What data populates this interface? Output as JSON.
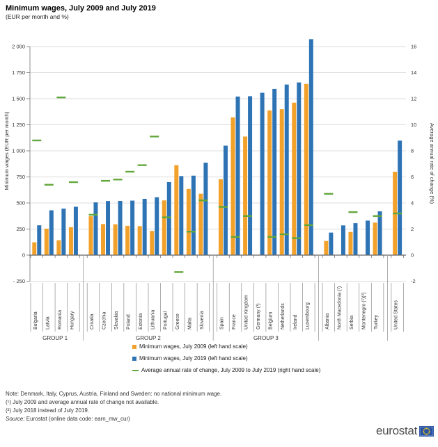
{
  "chart_data": {
    "type": "bar",
    "title": "Minimum wages, July 2009 and July 2019",
    "subtitle": "(EUR per month and %)",
    "y_left": {
      "label": "Minimum wages (EUR per month)",
      "min": -250,
      "max": 2000,
      "tick_step": 250,
      "ticks": [
        "2 000",
        "1 750",
        "1 500",
        "1 250",
        "1 000",
        "750",
        "500",
        "250",
        "0",
        "- 250"
      ]
    },
    "y_right": {
      "label": "Average annual rate of change (%)",
      "min": -2,
      "max": 16,
      "tick_step": 2,
      "ticks": [
        "16",
        "14",
        "12",
        "10",
        "8",
        "6",
        "4",
        "2",
        "0",
        "-2"
      ]
    },
    "grid": true,
    "legend_position": "bottom",
    "series": [
      {
        "key": "wage_2009",
        "name": "Minimum wages, July 2009 (left hand scale)",
        "color": "#F2A22B",
        "axis": "left"
      },
      {
        "key": "wage_2019",
        "name": "Minimum wages, July 2019 (left hand scale)",
        "color": "#2E74B5",
        "axis": "left"
      },
      {
        "key": "rate",
        "name": "Average annual rate of change, July 2009 to July 2019 (right hand scale)",
        "color": "#62A73B",
        "axis": "right"
      }
    ],
    "groups": [
      {
        "label": "GROUP 1",
        "from": 0,
        "to": 3
      },
      {
        "label": "GROUP 2",
        "from": 4,
        "to": 13
      },
      {
        "label": "GROUP 3",
        "from": 14,
        "to": 21
      },
      {
        "label": "",
        "from": 22,
        "to": 26
      },
      {
        "label": "",
        "from": 27,
        "to": 27
      }
    ],
    "countries": [
      {
        "name": "Bulgaria",
        "wage_2009": 123,
        "wage_2019": 286,
        "rate": 8.8
      },
      {
        "name": "Latvia",
        "wage_2009": 254,
        "wage_2019": 430,
        "rate": 5.4
      },
      {
        "name": "Romania",
        "wage_2009": 143,
        "wage_2019": 446,
        "rate": 12.1
      },
      {
        "name": "Hungary",
        "wage_2009": 268,
        "wage_2019": 464,
        "rate": 5.6
      },
      {
        "name": "Croatia",
        "wage_2009": 373,
        "wage_2019": 506,
        "rate": 3.1
      },
      {
        "name": "Czechia",
        "wage_2009": 298,
        "wage_2019": 519,
        "rate": 5.7
      },
      {
        "name": "Slovakia",
        "wage_2009": 296,
        "wage_2019": 520,
        "rate": 5.8
      },
      {
        "name": "Poland",
        "wage_2009": 281,
        "wage_2019": 523,
        "rate": 6.4
      },
      {
        "name": "Estonia",
        "wage_2009": 278,
        "wage_2019": 540,
        "rate": 6.9
      },
      {
        "name": "Lithuania",
        "wage_2009": 232,
        "wage_2019": 555,
        "rate": 9.1
      },
      {
        "name": "Portugal",
        "wage_2009": 525,
        "wage_2019": 700,
        "rate": 2.9
      },
      {
        "name": "Greece",
        "wage_2009": 863,
        "wage_2019": 758,
        "rate": -1.3
      },
      {
        "name": "Malta",
        "wage_2009": 635,
        "wage_2019": 762,
        "rate": 1.8
      },
      {
        "name": "Slovenia",
        "wage_2009": 589,
        "wage_2019": 887,
        "rate": 4.2
      },
      {
        "name": "Spain",
        "wage_2009": 728,
        "wage_2019": 1050,
        "rate": 3.7
      },
      {
        "name": "France",
        "wage_2009": 1321,
        "wage_2019": 1521,
        "rate": 1.4
      },
      {
        "name": "United Kingdom",
        "wage_2009": 1137,
        "wage_2019": 1524,
        "rate": 3.0
      },
      {
        "name": "Germany (¹)",
        "wage_2009": null,
        "wage_2019": 1557,
        "rate": null
      },
      {
        "name": "Belgium",
        "wage_2009": 1388,
        "wage_2019": 1594,
        "rate": 1.4
      },
      {
        "name": "Netherlands",
        "wage_2009": 1399,
        "wage_2019": 1636,
        "rate": 1.6
      },
      {
        "name": "Ireland",
        "wage_2009": 1462,
        "wage_2019": 1656,
        "rate": 1.3
      },
      {
        "name": "Luxembourg",
        "wage_2009": 1642,
        "wage_2019": 2071,
        "rate": 2.3
      },
      {
        "name": "Albania",
        "wage_2009": 136,
        "wage_2019": 216,
        "rate": 4.7
      },
      {
        "name": "North Macedonia (¹)",
        "wage_2009": null,
        "wage_2019": 285,
        "rate": null
      },
      {
        "name": "Serbia",
        "wage_2009": 222,
        "wage_2019": 306,
        "rate": 3.3
      },
      {
        "name": "Montenegro (¹)(²)",
        "wage_2009": null,
        "wage_2019": 331,
        "rate": null
      },
      {
        "name": "Turkey",
        "wage_2009": 312,
        "wage_2019": 420,
        "rate": 3.0
      },
      {
        "name": "United States",
        "wage_2009": 800,
        "wage_2019": 1098,
        "rate": 3.2
      }
    ],
    "colors": {
      "grid": "#DCDCDC",
      "axis": "#8C8C8C",
      "zero_line": "#666666",
      "label_text": "#333333"
    }
  },
  "notes": [
    "Note: Denmark, Italy, Cyprus, Austria, Finland and Sweden: no national minimum wage.",
    "(¹) July 2009 and average annual rate of change not available.",
    "(²) July 2018 instead of July 2019."
  ],
  "source": {
    "prefix": "Source:",
    "text": " Eurostat (online data code: earn_mw_cur)"
  },
  "logo": {
    "text": "eurostat"
  }
}
